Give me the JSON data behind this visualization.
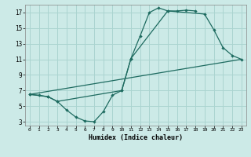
{
  "title": "",
  "xlabel": "Humidex (Indice chaleur)",
  "bg_color": "#cceae7",
  "grid_color": "#aad4d0",
  "line_color": "#1e6b60",
  "xlim": [
    -0.5,
    23.5
  ],
  "ylim": [
    2.5,
    18.0
  ],
  "xticks": [
    0,
    1,
    2,
    3,
    4,
    5,
    6,
    7,
    8,
    9,
    10,
    11,
    12,
    13,
    14,
    15,
    16,
    17,
    18,
    19,
    20,
    21,
    22,
    23
  ],
  "yticks": [
    3,
    5,
    7,
    9,
    11,
    13,
    15,
    17
  ],
  "line1_x": [
    0,
    1,
    2,
    3,
    4,
    5,
    6,
    7,
    8,
    9,
    10,
    11,
    12,
    13,
    14,
    15,
    16,
    17,
    18
  ],
  "line1_y": [
    6.5,
    6.4,
    6.2,
    5.6,
    4.5,
    3.6,
    3.1,
    3.0,
    4.3,
    6.4,
    7.0,
    11.1,
    14.0,
    17.0,
    17.6,
    17.2,
    17.2,
    17.3,
    17.2
  ],
  "line2_x": [
    0,
    2,
    3,
    10,
    11,
    15,
    19,
    20,
    21,
    22,
    23
  ],
  "line2_y": [
    6.5,
    6.2,
    5.6,
    7.0,
    11.1,
    17.2,
    16.8,
    14.8,
    12.5,
    11.5,
    11.0
  ],
  "line3_x": [
    0,
    23
  ],
  "line3_y": [
    6.5,
    11.0
  ]
}
